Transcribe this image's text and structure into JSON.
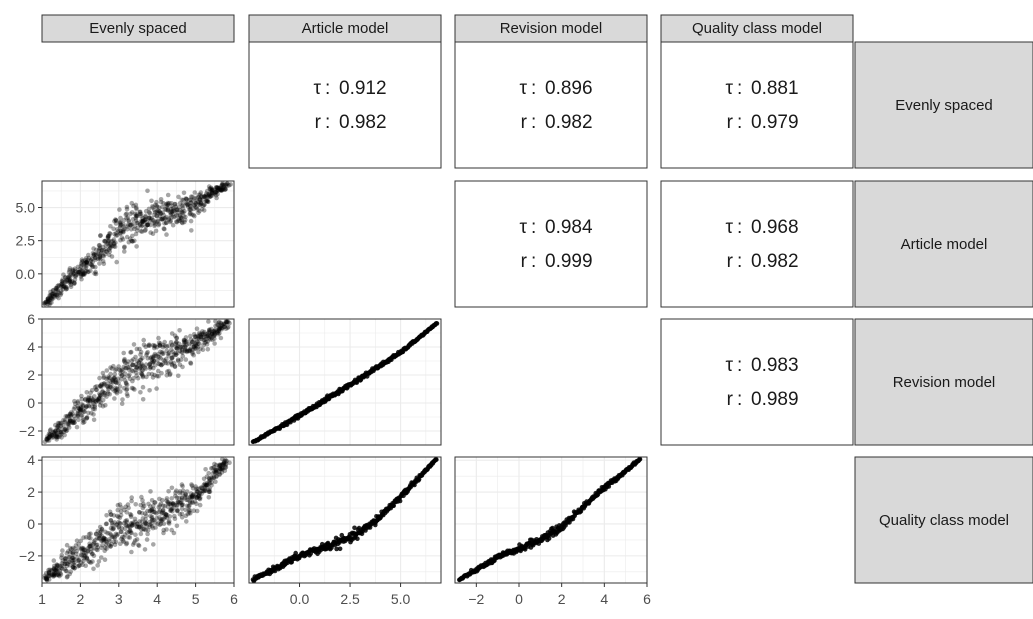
{
  "variables": [
    "Evenly spaced",
    "Article model",
    "Revision model",
    "Quality class model"
  ],
  "correlations": [
    {
      "row": 0,
      "col": 1,
      "tau_label": "τ",
      "tau": "0.912",
      "r_label": "r",
      "r": "0.982"
    },
    {
      "row": 0,
      "col": 2,
      "tau_label": "τ",
      "tau": "0.896",
      "r_label": "r",
      "r": "0.982"
    },
    {
      "row": 0,
      "col": 3,
      "tau_label": "τ",
      "tau": "0.881",
      "r_label": "r",
      "r": "0.979"
    },
    {
      "row": 1,
      "col": 2,
      "tau_label": "τ",
      "tau": "0.984",
      "r_label": "r",
      "r": "0.999"
    },
    {
      "row": 1,
      "col": 3,
      "tau_label": "τ",
      "tau": "0.968",
      "r_label": "r",
      "r": "0.982"
    },
    {
      "row": 2,
      "col": 3,
      "tau_label": "τ",
      "tau": "0.983",
      "r_label": "r",
      "r": "0.989"
    }
  ],
  "chart_data": {
    "type": "scatter",
    "axes": {
      "x": [
        {
          "col": 0,
          "range": [
            1,
            6
          ],
          "ticks": [
            1,
            2,
            3,
            4,
            5,
            6
          ],
          "tick_labels": [
            "1",
            "2",
            "3",
            "4",
            "5",
            "6"
          ]
        },
        {
          "col": 1,
          "range": [
            -2.5,
            7
          ],
          "ticks": [
            0,
            2.5,
            5
          ],
          "tick_labels": [
            "0.0",
            "2.5",
            "5.0"
          ]
        },
        {
          "col": 2,
          "range": [
            -3,
            6
          ],
          "ticks": [
            -2,
            0,
            2,
            4,
            6
          ],
          "tick_labels": [
            "−2",
            "0",
            "2",
            "4",
            "6"
          ]
        }
      ],
      "y": [
        {
          "row": 1,
          "range": [
            -2.5,
            7
          ],
          "ticks": [
            0,
            2.5,
            5
          ],
          "tick_labels": [
            "0.0",
            "2.5",
            "5.0"
          ]
        },
        {
          "row": 2,
          "range": [
            -3,
            6
          ],
          "ticks": [
            -2,
            0,
            2,
            4,
            6
          ],
          "tick_labels": [
            "−2",
            "0",
            "2",
            "4",
            "6"
          ]
        },
        {
          "row": 3,
          "range": [
            -3.7,
            4.2
          ],
          "ticks": [
            -2,
            0,
            2,
            4
          ],
          "tick_labels": [
            "−2",
            "0",
            "2",
            "4"
          ]
        }
      ]
    },
    "panels": [
      {
        "row": 1,
        "col": 0,
        "x_var": "Evenly spaced",
        "y_var": "Article model",
        "curve": [
          [
            1.05,
            -2.3
          ],
          [
            2,
            0.3
          ],
          [
            2.5,
            1.5
          ],
          [
            3,
            3.3
          ],
          [
            3.5,
            3.9
          ],
          [
            4,
            4.2
          ],
          [
            5,
            5.2
          ],
          [
            5.85,
            6.8
          ]
        ],
        "spread": 0.7
      },
      {
        "row": 2,
        "col": 0,
        "x_var": "Evenly spaced",
        "y_var": "Revision model",
        "curve": [
          [
            1.05,
            -2.8
          ],
          [
            2,
            -0.6
          ],
          [
            2.5,
            0.5
          ],
          [
            3,
            1.8
          ],
          [
            3.5,
            2.6
          ],
          [
            4,
            3.1
          ],
          [
            5,
            4.2
          ],
          [
            5.85,
            5.7
          ]
        ],
        "spread": 0.8
      },
      {
        "row": 3,
        "col": 0,
        "x_var": "Evenly spaced",
        "y_var": "Quality class model",
        "curve": [
          [
            1.05,
            -3.5
          ],
          [
            2,
            -1.8
          ],
          [
            2.5,
            -1.2
          ],
          [
            3,
            -0.3
          ],
          [
            3.5,
            0.1
          ],
          [
            4,
            0.6
          ],
          [
            5,
            1.7
          ],
          [
            5.85,
            4.1
          ]
        ],
        "spread": 0.8
      },
      {
        "row": 2,
        "col": 1,
        "x_var": "Article model",
        "y_var": "Revision model",
        "curve": [
          [
            -2.3,
            -2.8
          ],
          [
            0,
            -0.9
          ],
          [
            2.5,
            1.3
          ],
          [
            5,
            3.6
          ],
          [
            6.8,
            5.7
          ]
        ],
        "spread": 0.08
      },
      {
        "row": 3,
        "col": 1,
        "x_var": "Article model",
        "y_var": "Quality class model",
        "curve": [
          [
            -2.3,
            -3.5
          ],
          [
            0,
            -2.0
          ],
          [
            2.5,
            -0.9
          ],
          [
            3.5,
            -0.1
          ],
          [
            5,
            1.7
          ],
          [
            6.8,
            4.1
          ]
        ],
        "spread": 0.15
      },
      {
        "row": 3,
        "col": 2,
        "x_var": "Revision model",
        "y_var": "Quality class model",
        "curve": [
          [
            -2.8,
            -3.5
          ],
          [
            -1,
            -2.1
          ],
          [
            1,
            -1.0
          ],
          [
            2,
            -0.2
          ],
          [
            3.5,
            1.7
          ],
          [
            5.7,
            4.1
          ]
        ],
        "spread": 0.12
      }
    ]
  }
}
